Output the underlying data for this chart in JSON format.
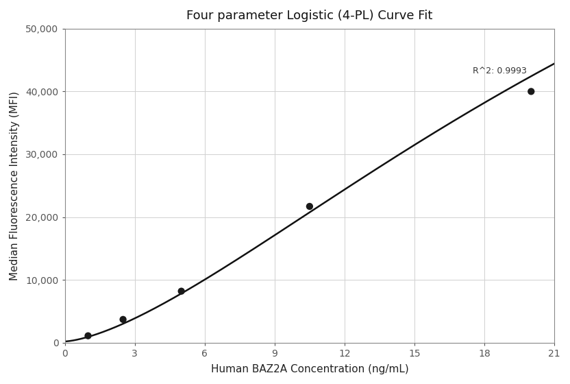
{
  "title": "Four parameter Logistic (4-PL) Curve Fit",
  "xlabel": "Human BAZ2A Concentration (ng/mL)",
  "ylabel": "Median Fluorescence Intensity (MFI)",
  "scatter_x": [
    1.0,
    2.5,
    5.0,
    10.5,
    20.0
  ],
  "scatter_y": [
    1100,
    3700,
    8200,
    21700,
    40000
  ],
  "xlim": [
    0,
    21
  ],
  "ylim": [
    0,
    50000
  ],
  "xticks": [
    0,
    3,
    6,
    9,
    12,
    15,
    18,
    21
  ],
  "yticks": [
    0,
    10000,
    20000,
    30000,
    40000,
    50000
  ],
  "ytick_labels": [
    "0",
    "10,000",
    "20,000",
    "30,000",
    "40,000",
    "50,000"
  ],
  "r2_text": "R^2: 0.9993",
  "r2_x": 19.8,
  "r2_y": 42500,
  "curve_color": "#111111",
  "scatter_color": "#1a1a1a",
  "grid_color": "#d0d0d0",
  "background_color": "#ffffff",
  "title_fontsize": 13,
  "label_fontsize": 11,
  "tick_fontsize": 10
}
